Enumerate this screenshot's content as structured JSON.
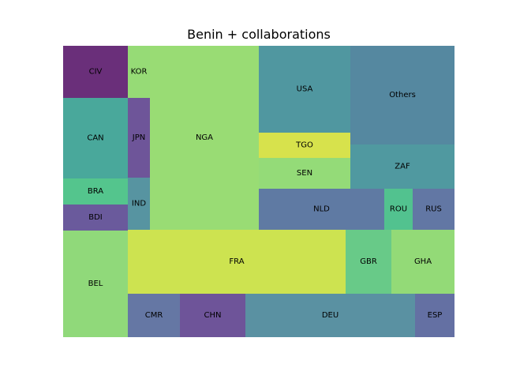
{
  "chart_data": {
    "type": "treemap",
    "title": "Benin + collaborations",
    "grid": false,
    "legend": "none",
    "tiles": [
      {
        "label": "CIV",
        "color": "#6a2f7a"
      },
      {
        "label": "CAN",
        "color": "#49a89b"
      },
      {
        "label": "BRA",
        "color": "#54c58d"
      },
      {
        "label": "BDI",
        "color": "#6a5a9c"
      },
      {
        "label": "BEL",
        "color": "#90d97a"
      },
      {
        "label": "KOR",
        "color": "#96db76"
      },
      {
        "label": "JPN",
        "color": "#6e5599"
      },
      {
        "label": "IND",
        "color": "#5794a1"
      },
      {
        "label": "NGA",
        "color": "#99dc74"
      },
      {
        "label": "USA",
        "color": "#5097a0"
      },
      {
        "label": "TGO",
        "color": "#d7e24c"
      },
      {
        "label": "SEN",
        "color": "#94db78"
      },
      {
        "label": "Others",
        "color": "#5588a0"
      },
      {
        "label": "ZAF",
        "color": "#5099a0"
      },
      {
        "label": "NLD",
        "color": "#5f7aa3"
      },
      {
        "label": "ROU",
        "color": "#52c28f"
      },
      {
        "label": "RUS",
        "color": "#6277a4"
      },
      {
        "label": "FRA",
        "color": "#cde350"
      },
      {
        "label": "GBR",
        "color": "#68ca88"
      },
      {
        "label": "GHA",
        "color": "#93da77"
      },
      {
        "label": "CMR",
        "color": "#6577a4"
      },
      {
        "label": "CHN",
        "color": "#6e5499"
      },
      {
        "label": "DEU",
        "color": "#5a91a2"
      },
      {
        "label": "ESP",
        "color": "#6470a3"
      }
    ]
  }
}
